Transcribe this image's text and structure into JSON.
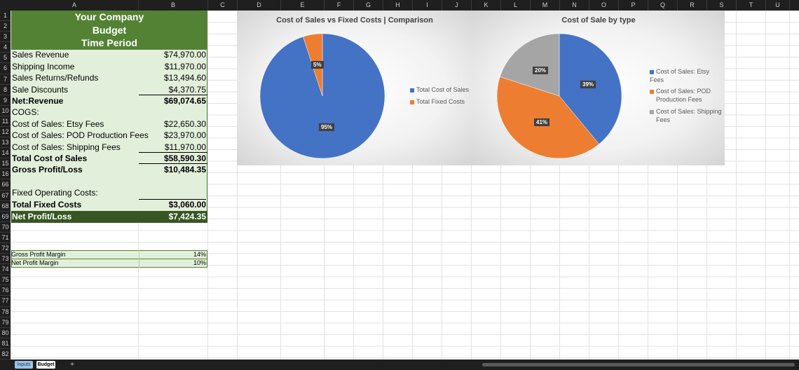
{
  "columns": [
    "A",
    "B",
    "C",
    "D",
    "E",
    "F",
    "G",
    "H",
    "I",
    "J",
    "K",
    "L",
    "M",
    "N",
    "O",
    "P",
    "Q",
    "R",
    "S",
    "T",
    "U"
  ],
  "rows": [
    {
      "n": "1"
    },
    {
      "n": "2"
    },
    {
      "n": "3"
    },
    {
      "n": "4"
    },
    {
      "n": "5"
    },
    {
      "n": "6"
    },
    {
      "n": "7"
    },
    {
      "n": "8"
    },
    {
      "n": "9"
    },
    {
      "n": "10"
    },
    {
      "n": "11"
    },
    {
      "n": "12"
    },
    {
      "n": "13"
    },
    {
      "n": "14"
    },
    {
      "n": "15"
    },
    {
      "n": "16"
    },
    {
      "n": "66"
    },
    {
      "n": "67"
    },
    {
      "n": "68"
    },
    {
      "n": "69"
    },
    {
      "n": "70"
    },
    {
      "n": "71"
    },
    {
      "n": "72"
    },
    {
      "n": "73"
    },
    {
      "n": "74"
    },
    {
      "n": "75"
    },
    {
      "n": "76"
    },
    {
      "n": "77"
    },
    {
      "n": "78"
    },
    {
      "n": "79"
    },
    {
      "n": "80"
    },
    {
      "n": "81"
    },
    {
      "n": "82"
    }
  ],
  "header": {
    "line1": "Your Company",
    "line2": "Budget",
    "line3": "Time Period"
  },
  "budget": {
    "sales_revenue": {
      "label": "Sales Revenue",
      "value": "$74,970.00"
    },
    "shipping_income": {
      "label": "Shipping Income",
      "value": "$11,970.00"
    },
    "returns": {
      "label": "Sales Returns/Refunds",
      "value": "$13,494.60"
    },
    "discounts": {
      "label": "Sale Discounts",
      "value": "$4,370.75"
    },
    "net_revenue": {
      "label": "Net:Revenue",
      "value": "$69,074.65"
    },
    "cogs": {
      "label": "COGS:"
    },
    "etsy_fees": {
      "label": "Cost of Sales: Etsy Fees",
      "value": "$22,650.30"
    },
    "pod_fees": {
      "label": "Cost of Sales: POD Production Fees",
      "value": "$23,970.00"
    },
    "shipping_fees": {
      "label": "Cost of Sales: Shipping Fees",
      "value": "$11,970.00"
    },
    "total_cost_of_sales": {
      "label": "Total Cost of Sales",
      "value": "$58,590.30"
    },
    "gross_profit": {
      "label": "Gross Profit/Loss",
      "value": "$10,484.35"
    },
    "fixed_costs_header": {
      "label": "Fixed Operating Costs:"
    },
    "total_fixed_costs": {
      "label": "Total Fixed Costs",
      "value": "$3,060.00"
    },
    "net_profit": {
      "label": "Net Profit/Loss",
      "value": "$7,424.35"
    }
  },
  "margins": {
    "gross": {
      "label": "Gross Profit Margin",
      "value": "14%"
    },
    "net": {
      "label": "Net Profit Margin",
      "value": "10%"
    }
  },
  "colors": {
    "green_dark": "#548235",
    "green_darker": "#375623",
    "green_light": "#e2efda",
    "blue": "#4472c4",
    "orange": "#ed7d31",
    "gray": "#a5a5a5"
  },
  "chart_data": [
    {
      "type": "pie",
      "title": "Cost of Sales vs Fixed Costs | Comparison",
      "categories": [
        "Total Cost of Sales",
        "Total Fixed Costs"
      ],
      "values": [
        95,
        5
      ],
      "labels": [
        "95%",
        "5%"
      ],
      "colors": [
        "#4472c4",
        "#ed7d31"
      ],
      "legend": "right"
    },
    {
      "type": "pie",
      "title": "Cost of Sale by type",
      "categories": [
        "Cost of Sales: Etsy Fees",
        "Cost of Sales: POD Production Fees",
        "Cost of Sales: Shipping Fees"
      ],
      "values": [
        39,
        41,
        20
      ],
      "labels": [
        "39%",
        "41%",
        "20%"
      ],
      "colors": [
        "#4472c4",
        "#ed7d31",
        "#a5a5a5"
      ],
      "legend": "right"
    }
  ],
  "legend2": {
    "l1": "Cost of Sales: Etsy Fees",
    "l2a": "Cost of Sales: POD",
    "l2b": "Production Fees",
    "l3a": "Cost of Sales: Shipping",
    "l3b": "Fees"
  },
  "tabs": [
    {
      "label": "Inputs"
    },
    {
      "label": "Budget"
    }
  ],
  "add_sheet": "+"
}
